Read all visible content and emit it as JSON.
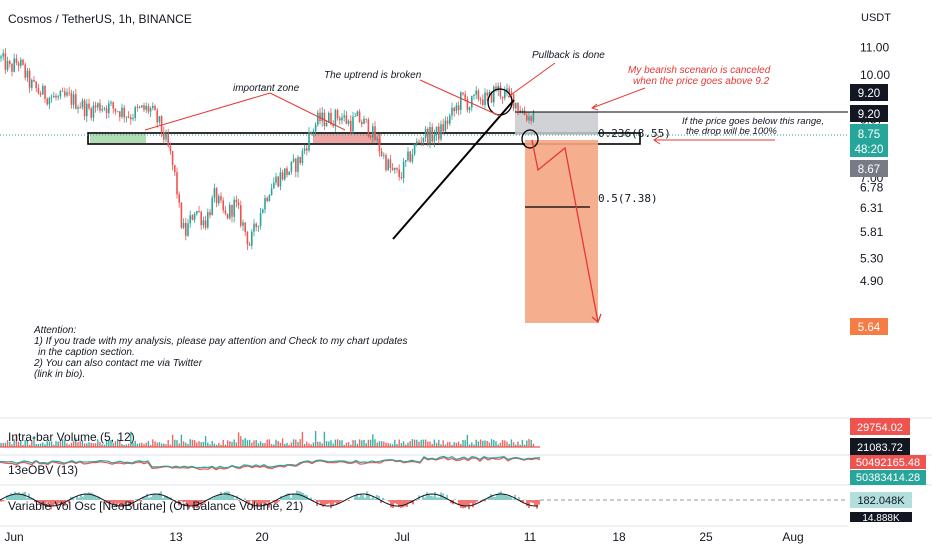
{
  "header": {
    "title": "Cosmos / TetherUS, 1h, BINANCE",
    "currency": "USDT"
  },
  "chart_data": {
    "type": "candlestick",
    "title": "Cosmos / TetherUS, 1h, BINANCE",
    "y_axis": {
      "unit": "USDT",
      "scale": "log",
      "ticks": [
        "11.00",
        "10.00",
        "8.57",
        "7.00",
        "6.78",
        "6.31",
        "5.81",
        "5.30",
        "4.90"
      ],
      "range": [
        4.6,
        11.9
      ]
    },
    "x_axis": {
      "tick_labels": [
        "Jun",
        "13",
        "20",
        "Jul",
        "11",
        "18",
        "25",
        "Aug"
      ]
    },
    "price_path": [
      [
        0,
        10.6
      ],
      [
        10,
        10.2
      ],
      [
        18,
        10.5
      ],
      [
        30,
        9.7
      ],
      [
        38,
        9.45
      ],
      [
        48,
        9.3
      ],
      [
        58,
        9.2
      ],
      [
        68,
        9.25
      ],
      [
        80,
        9.05
      ],
      [
        88,
        8.85
      ],
      [
        100,
        9.0
      ],
      [
        110,
        8.95
      ],
      [
        120,
        8.85
      ],
      [
        130,
        8.7
      ],
      [
        140,
        8.85
      ],
      [
        150,
        8.9
      ],
      [
        160,
        8.4
      ],
      [
        170,
        7.6
      ],
      [
        176,
        6.9
      ],
      [
        180,
        6.1
      ],
      [
        185,
        5.75
      ],
      [
        195,
        6.3
      ],
      [
        205,
        6.0
      ],
      [
        215,
        6.6
      ],
      [
        225,
        6.1
      ],
      [
        235,
        6.4
      ],
      [
        242,
        6.0
      ],
      [
        250,
        5.55
      ],
      [
        260,
        6.2
      ],
      [
        270,
        6.8
      ],
      [
        280,
        7.05
      ],
      [
        290,
        7.2
      ],
      [
        300,
        7.45
      ],
      [
        305,
        7.8
      ],
      [
        310,
        8.15
      ],
      [
        318,
        8.55
      ],
      [
        330,
        8.6
      ],
      [
        340,
        8.7
      ],
      [
        350,
        8.45
      ],
      [
        358,
        8.6
      ],
      [
        362,
        8.5
      ],
      [
        370,
        8.3
      ],
      [
        378,
        7.85
      ],
      [
        385,
        7.45
      ],
      [
        392,
        7.15
      ],
      [
        400,
        7.05
      ],
      [
        408,
        7.45
      ],
      [
        416,
        7.85
      ],
      [
        424,
        8.15
      ],
      [
        432,
        8.1
      ],
      [
        440,
        8.2
      ],
      [
        448,
        8.55
      ],
      [
        455,
        8.85
      ],
      [
        462,
        9.25
      ],
      [
        470,
        9.0
      ],
      [
        478,
        9.3
      ],
      [
        488,
        9.15
      ],
      [
        496,
        9.55
      ],
      [
        504,
        9.35
      ],
      [
        512,
        9.25
      ],
      [
        520,
        8.9
      ],
      [
        528,
        8.65
      ],
      [
        535,
        8.75
      ]
    ],
    "levels": [
      {
        "label": "0.236(8.55)",
        "value": 8.55
      },
      {
        "label": "0.5(7.38)",
        "value": 7.38
      }
    ],
    "price_scale_labels": [
      {
        "text": "9.20",
        "color": "#131722",
        "text_color": "#ffffff"
      },
      {
        "text": "9.20",
        "color": "#131722",
        "text_color": "#ffffff"
      },
      {
        "text": "8.75",
        "color": "#26a69a",
        "text_color": "#ffffff"
      },
      {
        "text": "48:20",
        "color": "#26a69a",
        "text_color": "#ffffff"
      },
      {
        "text": "8.67",
        "color": "#787b86",
        "text_color": "#ffffff"
      },
      {
        "text": "5.64",
        "color": "#f57c45",
        "text_color": "#ffffff"
      }
    ]
  },
  "annotations": {
    "important_zone": "important zone",
    "uptrend_broken": "The uptrend is broken",
    "pullback": "Pullback is done",
    "bearish_1": "My bearish scenario is canceled",
    "bearish_2": "when the price goes above 9.2",
    "below_1": "If the price goes below this range,",
    "below_2": "the drop will be 100%",
    "attention_title": "Attention:",
    "attention_1": "1) If you trade with my analysis, please pay attention and Check to my chart updates",
    "attention_2": "in the caption section.",
    "attention_3": "2) You can also contact me via Twitter",
    "attention_4": "(link in bio)."
  },
  "indicators": [
    {
      "label": "Intra-bar Volume (5, 12)",
      "values": [
        "29754.02",
        "21083.72"
      ]
    },
    {
      "label": "13eOBV (13)",
      "values": [
        "50492165.48",
        "50383414.28"
      ]
    },
    {
      "label": "Variable Vol Osc [NeoButane] (On Balance Volume, 21)",
      "values": [
        "182.048K",
        "14.888K"
      ]
    }
  ],
  "colors": {
    "bull": "#26a69a",
    "bear": "#ef5350",
    "zone_green": "#a5d6a7",
    "zone_red": "#ef9a9a",
    "target_box": "#f4a582",
    "stop_box": "#c8cacf",
    "annotation_red": "#e53935"
  }
}
